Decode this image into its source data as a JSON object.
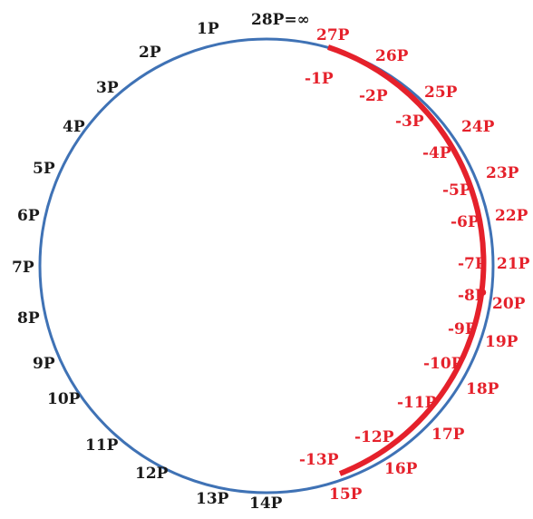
{
  "colors": {
    "circle": "#3f72b5",
    "arc": "#e5212b",
    "label_black": "#1a1a1a",
    "label_red": "#e5212b"
  },
  "top_label": "28P=∞",
  "left_labels": [
    "1P",
    "2P",
    "3P",
    "4P",
    "5P",
    "6P",
    "7P",
    "8P",
    "9P",
    "10P",
    "11P",
    "12P",
    "13P",
    "14P"
  ],
  "right_outer_labels": [
    "27P",
    "26P",
    "25P",
    "24P",
    "23P",
    "22P",
    "21P",
    "20P",
    "19P",
    "18P",
    "17P",
    "16P",
    "15P"
  ],
  "right_inner_labels": [
    "-1P",
    "-2P",
    "-3P",
    "-4P",
    "-5P",
    "-6P",
    "-7P",
    "-8P",
    "-9P",
    "-10P",
    "-11P",
    "-12P",
    "-13P"
  ]
}
